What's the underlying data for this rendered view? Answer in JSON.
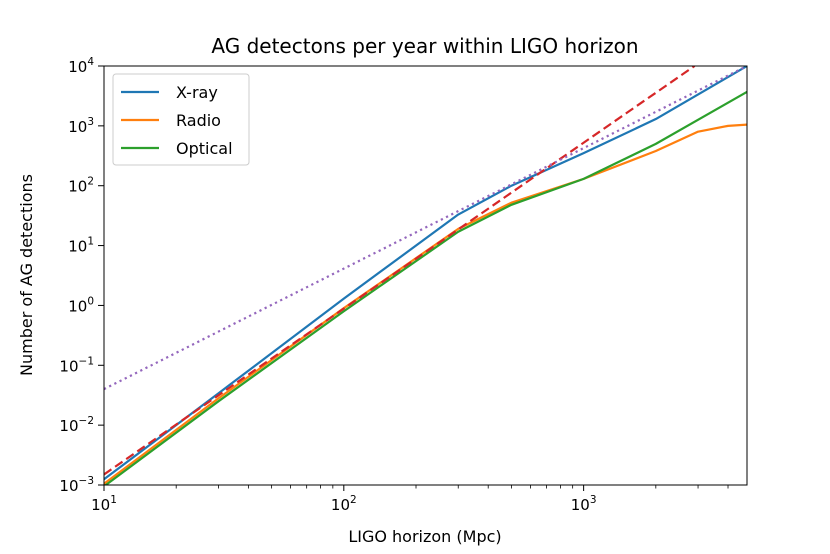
{
  "chart_data": {
    "type": "line",
    "title": "AG detectons per year within LIGO horizon",
    "xlabel": "LIGO horizon (Mpc)",
    "ylabel": "Number of AG detections",
    "xscale": "log",
    "yscale": "log",
    "xlim": [
      10,
      4800
    ],
    "ylim": [
      0.001,
      10000
    ],
    "grid": false,
    "legend_position": "top-left",
    "x_ticks": [
      {
        "value": 10,
        "base": "10",
        "exp": "1"
      },
      {
        "value": 100,
        "base": "10",
        "exp": "2"
      },
      {
        "value": 1000,
        "base": "10",
        "exp": "3"
      }
    ],
    "y_ticks": [
      {
        "value": 0.001,
        "base": "10",
        "exp": "−3"
      },
      {
        "value": 0.01,
        "base": "10",
        "exp": "−2"
      },
      {
        "value": 0.1,
        "base": "10",
        "exp": "−1"
      },
      {
        "value": 1,
        "base": "10",
        "exp": "0"
      },
      {
        "value": 10,
        "base": "10",
        "exp": "1"
      },
      {
        "value": 100,
        "base": "10",
        "exp": "2"
      },
      {
        "value": 1000,
        "base": "10",
        "exp": "3"
      },
      {
        "value": 10000,
        "base": "10",
        "exp": "4"
      }
    ],
    "series": [
      {
        "name": "X-ray",
        "color": "#1f77b4",
        "style": "solid",
        "in_legend": true,
        "points": [
          [
            10,
            0.00125
          ],
          [
            30,
            0.034
          ],
          [
            100,
            1.3
          ],
          [
            300,
            33
          ],
          [
            500,
            100
          ],
          [
            1000,
            350
          ],
          [
            2000,
            1300
          ],
          [
            4800,
            10000
          ]
        ]
      },
      {
        "name": "Radio",
        "color": "#ff7f0e",
        "style": "solid",
        "in_legend": true,
        "points": [
          [
            10,
            0.00105
          ],
          [
            30,
            0.028
          ],
          [
            100,
            0.9
          ],
          [
            300,
            19
          ],
          [
            500,
            52
          ],
          [
            1000,
            130
          ],
          [
            2000,
            380
          ],
          [
            3000,
            800
          ],
          [
            4000,
            1000
          ],
          [
            4800,
            1050
          ]
        ]
      },
      {
        "name": "Optical",
        "color": "#2ca02c",
        "style": "solid",
        "in_legend": true,
        "points": [
          [
            10,
            0.00095
          ],
          [
            30,
            0.025
          ],
          [
            100,
            0.8
          ],
          [
            300,
            17
          ],
          [
            500,
            48
          ],
          [
            1000,
            130
          ],
          [
            2000,
            500
          ],
          [
            4800,
            3700
          ]
        ]
      },
      {
        "name": "",
        "color": "#d62728",
        "style": "dashed",
        "in_legend": false,
        "points": [
          [
            10,
            0.0015
          ],
          [
            2900,
            10000
          ]
        ]
      },
      {
        "name": "",
        "color": "#9467bd",
        "style": "dotted",
        "in_legend": false,
        "points": [
          [
            10,
            0.04
          ],
          [
            4800,
            10000
          ]
        ]
      }
    ]
  }
}
